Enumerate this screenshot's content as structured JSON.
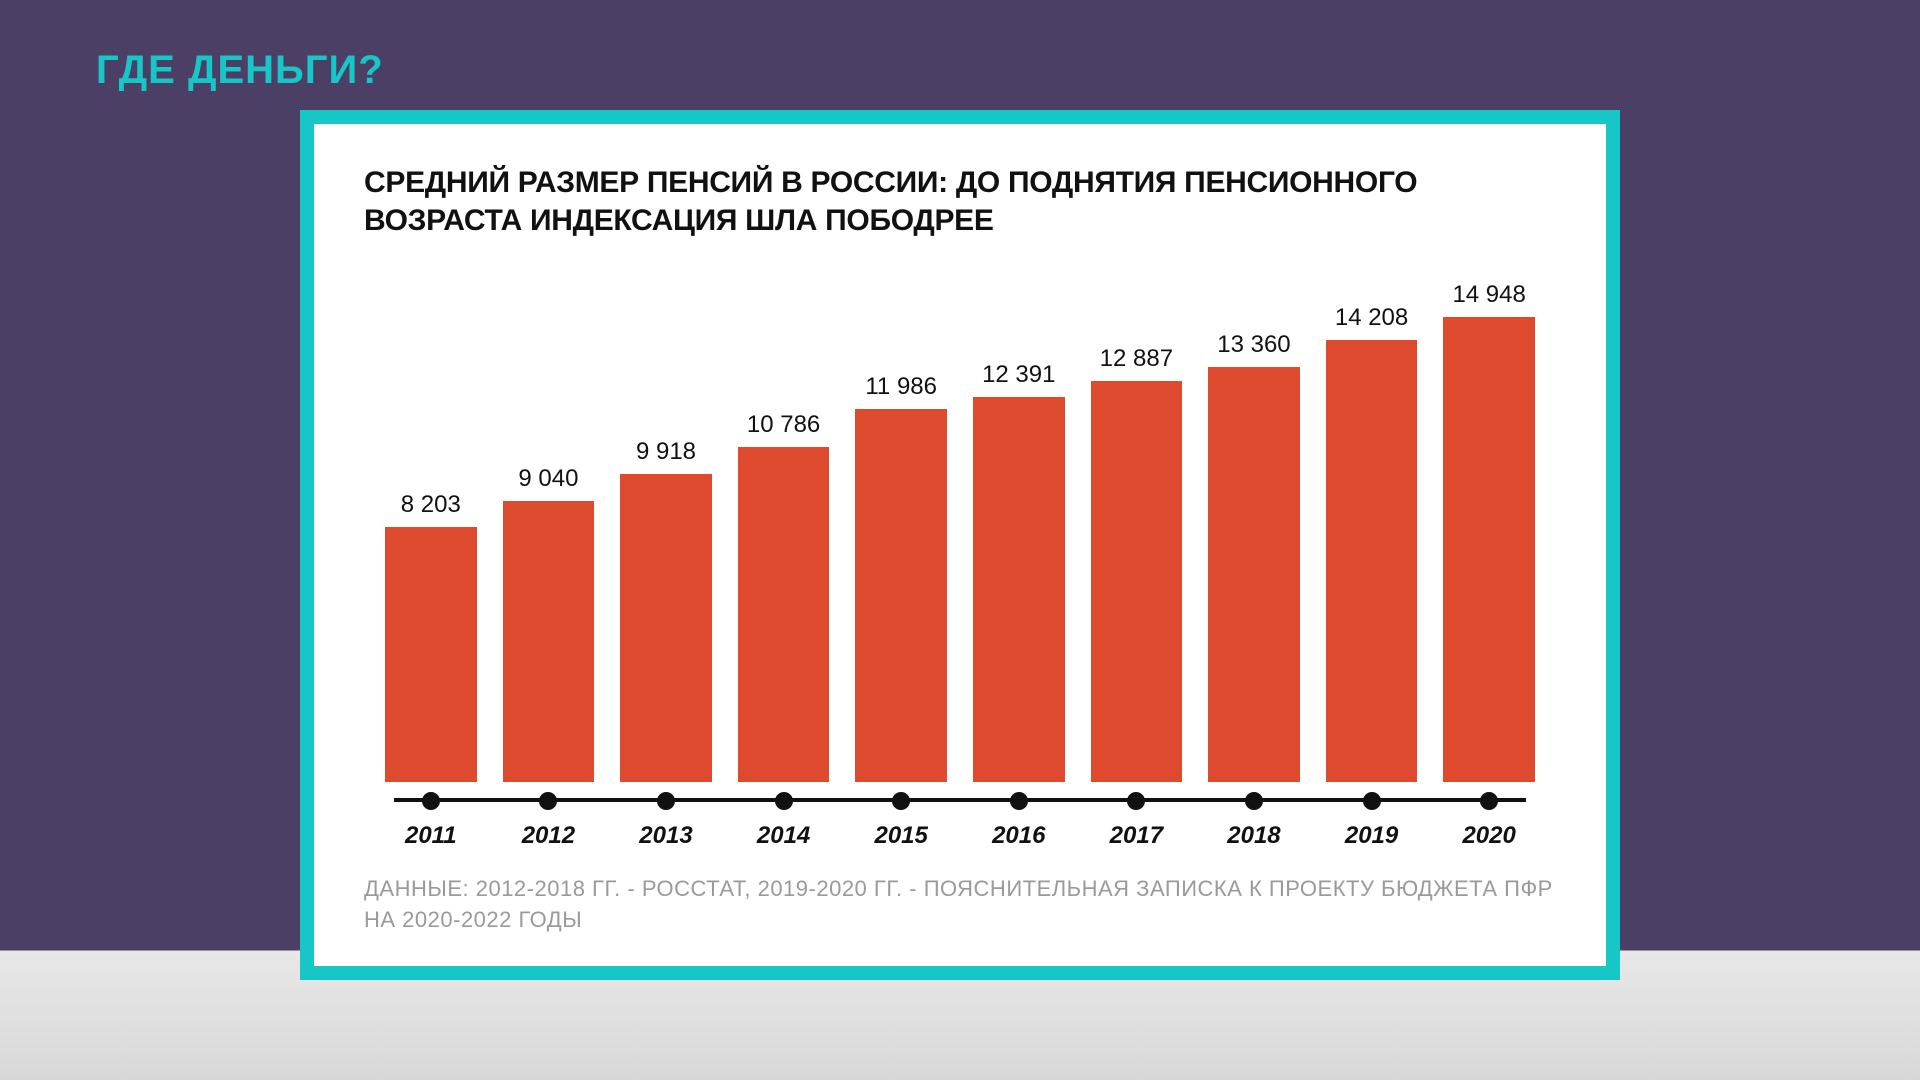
{
  "page": {
    "title": "ГДЕ ДЕНЬГИ?",
    "title_color": "#17c6c6",
    "bg_top": "#4b3f66",
    "bg_bottom": "#e0e0e0"
  },
  "card": {
    "frame_color": "#17c6c6",
    "bg": "#ffffff"
  },
  "chart": {
    "type": "bar",
    "title": "СРЕДНИЙ РАЗМЕР ПЕНСИЙ В РОССИИ: ДО ПОДНЯТИЯ ПЕНСИОННОГО ВОЗРАСТА ИНДЕКСАЦИЯ ШЛА ПОБОДРЕЕ",
    "title_fontsize": 30,
    "title_color": "#111111",
    "categories": [
      "2011",
      "2012",
      "2013",
      "2014",
      "2015",
      "2016",
      "2017",
      "2018",
      "2019",
      "2020"
    ],
    "values": [
      8203,
      9040,
      9918,
      10786,
      11986,
      12391,
      12887,
      13360,
      14208,
      14948
    ],
    "value_labels": [
      "8 203",
      "9 040",
      "9 918",
      "10 786",
      "11 986",
      "12 391",
      "12 887",
      "13 360",
      "14 208",
      "14 948"
    ],
    "bar_color": "#dd4a2e",
    "bar_width": 0.78,
    "value_label_fontsize": 24,
    "value_label_color": "#111111",
    "x_label_fontsize": 24,
    "x_label_style": "italic bold",
    "x_label_color": "#111111",
    "axis_color": "#111111",
    "axis_dot_radius": 9,
    "ylim": [
      0,
      16500
    ],
    "background_color": "#ffffff",
    "source_note": "ДАННЫЕ: 2012-2018 ГГ. - РОССТАТ, 2019-2020 ГГ. - ПОЯСНИТЕЛЬНАЯ ЗАПИСКА К ПРОЕКТУ БЮДЖЕТА ПФР НА 2020-2022 ГОДЫ",
    "source_note_color": "#9a9a9a",
    "source_note_fontsize": 22
  }
}
